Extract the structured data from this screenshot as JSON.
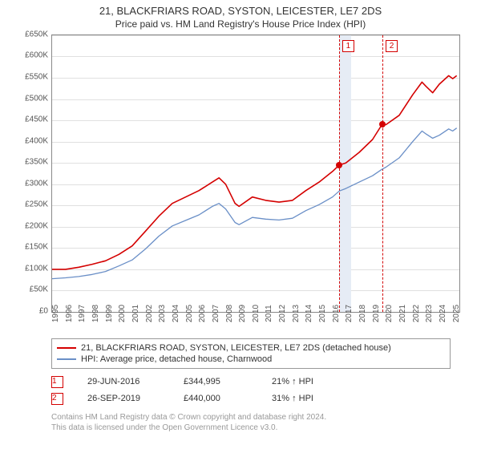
{
  "title": "21, BLACKFRIARS ROAD, SYSTON, LEICESTER, LE7 2DS",
  "subtitle": "Price paid vs. HM Land Registry's House Price Index (HPI)",
  "chart": {
    "type": "line",
    "background_color": "#ffffff",
    "grid_color": "#e0e0e0",
    "axis_color": "#888888",
    "label_fontsize": 10,
    "title_fontsize": 13,
    "x": {
      "min": 1995,
      "max": 2025.5,
      "ticks": [
        1995,
        1996,
        1997,
        1998,
        1999,
        2000,
        2001,
        2002,
        2003,
        2004,
        2005,
        2006,
        2007,
        2008,
        2009,
        2010,
        2011,
        2012,
        2013,
        2014,
        2015,
        2016,
        2017,
        2018,
        2019,
        2020,
        2021,
        2022,
        2023,
        2024,
        2025
      ]
    },
    "y": {
      "min": 0,
      "max": 650000,
      "tick_step": 50000,
      "tick_labels": [
        "£0",
        "£50K",
        "£100K",
        "£150K",
        "£200K",
        "£250K",
        "£300K",
        "£350K",
        "£400K",
        "£450K",
        "£500K",
        "£550K",
        "£600K",
        "£650K"
      ]
    },
    "series": [
      {
        "id": "property",
        "label": "21, BLACKFRIARS ROAD, SYSTON, LEICESTER, LE7 2DS (detached house)",
        "color": "#d40000",
        "line_width": 1.6,
        "points": [
          [
            1995,
            100000
          ],
          [
            1996,
            100000
          ],
          [
            1997,
            105000
          ],
          [
            1998,
            112000
          ],
          [
            1999,
            120000
          ],
          [
            2000,
            135000
          ],
          [
            2001,
            155000
          ],
          [
            2002,
            190000
          ],
          [
            2003,
            225000
          ],
          [
            2004,
            255000
          ],
          [
            2005,
            270000
          ],
          [
            2006,
            285000
          ],
          [
            2007,
            305000
          ],
          [
            2007.5,
            315000
          ],
          [
            2008,
            300000
          ],
          [
            2008.7,
            255000
          ],
          [
            2009,
            248000
          ],
          [
            2010,
            270000
          ],
          [
            2011,
            262000
          ],
          [
            2012,
            258000
          ],
          [
            2013,
            262000
          ],
          [
            2014,
            285000
          ],
          [
            2015,
            305000
          ],
          [
            2016,
            330000
          ],
          [
            2016.5,
            344995
          ],
          [
            2017,
            350000
          ],
          [
            2018,
            375000
          ],
          [
            2019,
            405000
          ],
          [
            2019.7,
            440000
          ],
          [
            2020,
            440000
          ],
          [
            2021,
            462000
          ],
          [
            2022,
            510000
          ],
          [
            2022.7,
            540000
          ],
          [
            2023,
            530000
          ],
          [
            2023.5,
            515000
          ],
          [
            2024,
            535000
          ],
          [
            2024.7,
            555000
          ],
          [
            2025,
            548000
          ],
          [
            2025.3,
            555000
          ]
        ]
      },
      {
        "id": "hpi",
        "label": "HPI: Average price, detached house, Charnwood",
        "color": "#6a8fc7",
        "line_width": 1.3,
        "points": [
          [
            1995,
            78000
          ],
          [
            1996,
            80000
          ],
          [
            1997,
            83000
          ],
          [
            1998,
            88000
          ],
          [
            1999,
            95000
          ],
          [
            2000,
            108000
          ],
          [
            2001,
            122000
          ],
          [
            2002,
            148000
          ],
          [
            2003,
            178000
          ],
          [
            2004,
            202000
          ],
          [
            2005,
            215000
          ],
          [
            2006,
            228000
          ],
          [
            2007,
            248000
          ],
          [
            2007.5,
            255000
          ],
          [
            2008,
            242000
          ],
          [
            2008.7,
            210000
          ],
          [
            2009,
            205000
          ],
          [
            2010,
            222000
          ],
          [
            2011,
            218000
          ],
          [
            2012,
            216000
          ],
          [
            2013,
            220000
          ],
          [
            2014,
            238000
          ],
          [
            2015,
            252000
          ],
          [
            2016,
            270000
          ],
          [
            2016.5,
            284000
          ],
          [
            2017,
            290000
          ],
          [
            2018,
            305000
          ],
          [
            2019,
            320000
          ],
          [
            2019.7,
            335000
          ],
          [
            2020,
            340000
          ],
          [
            2021,
            362000
          ],
          [
            2022,
            400000
          ],
          [
            2022.7,
            425000
          ],
          [
            2023,
            418000
          ],
          [
            2023.5,
            408000
          ],
          [
            2024,
            415000
          ],
          [
            2024.7,
            430000
          ],
          [
            2025,
            425000
          ],
          [
            2025.3,
            432000
          ]
        ]
      }
    ],
    "sale_markers": [
      {
        "num": "1",
        "year": 2016.49,
        "price": 344995,
        "date_label": "29-JUN-2016",
        "price_label": "£344,995",
        "delta_label": "21% ↑ HPI",
        "band_end_year": 2017.4,
        "band_color": "#e6ecf5",
        "line_color": "#d40000",
        "dot_color": "#d40000"
      },
      {
        "num": "2",
        "year": 2019.74,
        "price": 440000,
        "date_label": "26-SEP-2019",
        "price_label": "£440,000",
        "delta_label": "31% ↑ HPI",
        "band_end_year": null,
        "band_color": null,
        "line_color": "#d40000",
        "dot_color": "#d40000"
      }
    ]
  },
  "footer": {
    "line1": "Contains HM Land Registry data © Crown copyright and database right 2024.",
    "line2": "This data is licensed under the Open Government Licence v3.0."
  }
}
